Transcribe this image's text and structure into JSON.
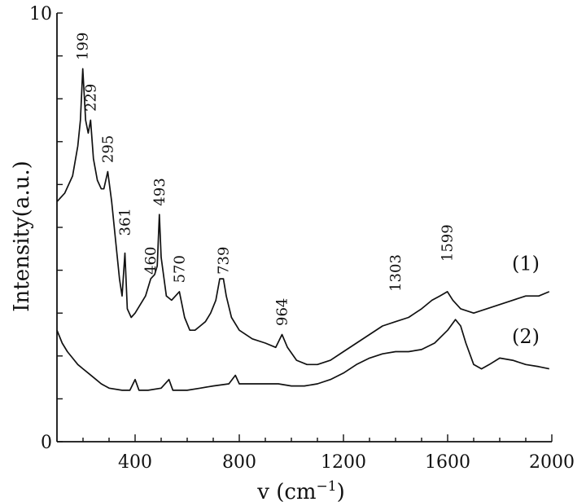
{
  "chart_data": {
    "type": "line",
    "title": "",
    "xlabel": "v (cm",
    "xlabel_sup": "−1",
    "xlabel_close": ")",
    "ylabel": "Intensity(a.u.)",
    "xlim": [
      100,
      2000
    ],
    "ylim": [
      0,
      10
    ],
    "x_ticks": [
      400,
      800,
      1200,
      1600,
      2000
    ],
    "y_tick_labels": [
      {
        "value": 10,
        "label": "10"
      },
      {
        "value": 0,
        "label": "0"
      }
    ],
    "grid": false,
    "series": [
      {
        "name": "(1)",
        "points": [
          [
            100,
            5.6
          ],
          [
            130,
            5.8
          ],
          [
            160,
            6.2
          ],
          [
            180,
            6.9
          ],
          [
            190,
            7.5
          ],
          [
            199,
            8.7
          ],
          [
            210,
            7.5
          ],
          [
            220,
            7.2
          ],
          [
            229,
            7.5
          ],
          [
            240,
            6.6
          ],
          [
            255,
            6.1
          ],
          [
            270,
            5.9
          ],
          [
            280,
            5.9
          ],
          [
            295,
            6.3
          ],
          [
            310,
            5.6
          ],
          [
            325,
            4.7
          ],
          [
            340,
            3.8
          ],
          [
            350,
            3.4
          ],
          [
            361,
            4.4
          ],
          [
            370,
            3.1
          ],
          [
            385,
            2.9
          ],
          [
            400,
            3.0
          ],
          [
            420,
            3.2
          ],
          [
            440,
            3.4
          ],
          [
            460,
            3.8
          ],
          [
            475,
            3.9
          ],
          [
            485,
            4.1
          ],
          [
            493,
            5.3
          ],
          [
            500,
            4.3
          ],
          [
            520,
            3.4
          ],
          [
            540,
            3.3
          ],
          [
            555,
            3.4
          ],
          [
            570,
            3.5
          ],
          [
            590,
            2.9
          ],
          [
            610,
            2.6
          ],
          [
            630,
            2.6
          ],
          [
            650,
            2.7
          ],
          [
            670,
            2.8
          ],
          [
            690,
            3.0
          ],
          [
            710,
            3.3
          ],
          [
            725,
            3.8
          ],
          [
            739,
            3.8
          ],
          [
            750,
            3.4
          ],
          [
            770,
            2.9
          ],
          [
            800,
            2.6
          ],
          [
            850,
            2.4
          ],
          [
            900,
            2.3
          ],
          [
            940,
            2.2
          ],
          [
            964,
            2.5
          ],
          [
            985,
            2.2
          ],
          [
            1020,
            1.9
          ],
          [
            1060,
            1.8
          ],
          [
            1100,
            1.8
          ],
          [
            1150,
            1.9
          ],
          [
            1200,
            2.1
          ],
          [
            1250,
            2.3
          ],
          [
            1300,
            2.5
          ],
          [
            1350,
            2.7
          ],
          [
            1400,
            2.8
          ],
          [
            1450,
            2.9
          ],
          [
            1500,
            3.1
          ],
          [
            1540,
            3.3
          ],
          [
            1570,
            3.4
          ],
          [
            1599,
            3.5
          ],
          [
            1620,
            3.3
          ],
          [
            1650,
            3.1
          ],
          [
            1700,
            3.0
          ],
          [
            1750,
            3.1
          ],
          [
            1800,
            3.2
          ],
          [
            1850,
            3.3
          ],
          [
            1900,
            3.4
          ],
          [
            1950,
            3.4
          ],
          [
            1990,
            3.5
          ]
        ]
      },
      {
        "name": "(2)",
        "points": [
          [
            100,
            2.6
          ],
          [
            120,
            2.3
          ],
          [
            140,
            2.1
          ],
          [
            160,
            1.95
          ],
          [
            180,
            1.8
          ],
          [
            200,
            1.7
          ],
          [
            220,
            1.6
          ],
          [
            250,
            1.45
          ],
          [
            270,
            1.35
          ],
          [
            300,
            1.25
          ],
          [
            350,
            1.2
          ],
          [
            380,
            1.2
          ],
          [
            400,
            1.45
          ],
          [
            415,
            1.2
          ],
          [
            450,
            1.2
          ],
          [
            500,
            1.25
          ],
          [
            530,
            1.45
          ],
          [
            545,
            1.2
          ],
          [
            600,
            1.2
          ],
          [
            650,
            1.25
          ],
          [
            700,
            1.3
          ],
          [
            760,
            1.35
          ],
          [
            785,
            1.55
          ],
          [
            800,
            1.35
          ],
          [
            850,
            1.35
          ],
          [
            900,
            1.35
          ],
          [
            950,
            1.35
          ],
          [
            1000,
            1.3
          ],
          [
            1050,
            1.3
          ],
          [
            1100,
            1.35
          ],
          [
            1150,
            1.45
          ],
          [
            1200,
            1.6
          ],
          [
            1250,
            1.8
          ],
          [
            1300,
            1.95
          ],
          [
            1350,
            2.05
          ],
          [
            1400,
            2.1
          ],
          [
            1450,
            2.1
          ],
          [
            1500,
            2.15
          ],
          [
            1550,
            2.3
          ],
          [
            1600,
            2.6
          ],
          [
            1630,
            2.85
          ],
          [
            1650,
            2.7
          ],
          [
            1670,
            2.3
          ],
          [
            1700,
            1.8
          ],
          [
            1730,
            1.7
          ],
          [
            1760,
            1.8
          ],
          [
            1800,
            1.95
          ],
          [
            1850,
            1.9
          ],
          [
            1900,
            1.8
          ],
          [
            1950,
            1.75
          ],
          [
            1990,
            1.7
          ]
        ]
      }
    ],
    "peak_labels": [
      {
        "text": "199",
        "x": 199,
        "y": 8.9
      },
      {
        "text": "229",
        "x": 229,
        "y": 7.7
      },
      {
        "text": "295",
        "x": 295,
        "y": 6.5
      },
      {
        "text": "361",
        "x": 361,
        "y": 4.8
      },
      {
        "text": "460",
        "x": 460,
        "y": 3.9
      },
      {
        "text": "493",
        "x": 493,
        "y": 5.5
      },
      {
        "text": "570",
        "x": 570,
        "y": 3.7
      },
      {
        "text": "739",
        "x": 739,
        "y": 3.9
      },
      {
        "text": "964",
        "x": 964,
        "y": 2.7
      },
      {
        "text": "1303",
        "x": 1400,
        "y": 3.5
      },
      {
        "text": "1599",
        "x": 1599,
        "y": 4.2
      }
    ],
    "series_labels": [
      {
        "text": "(1)",
        "x": 1900,
        "y": 4.0
      },
      {
        "text": "(2)",
        "x": 1900,
        "y": 2.3
      }
    ]
  }
}
